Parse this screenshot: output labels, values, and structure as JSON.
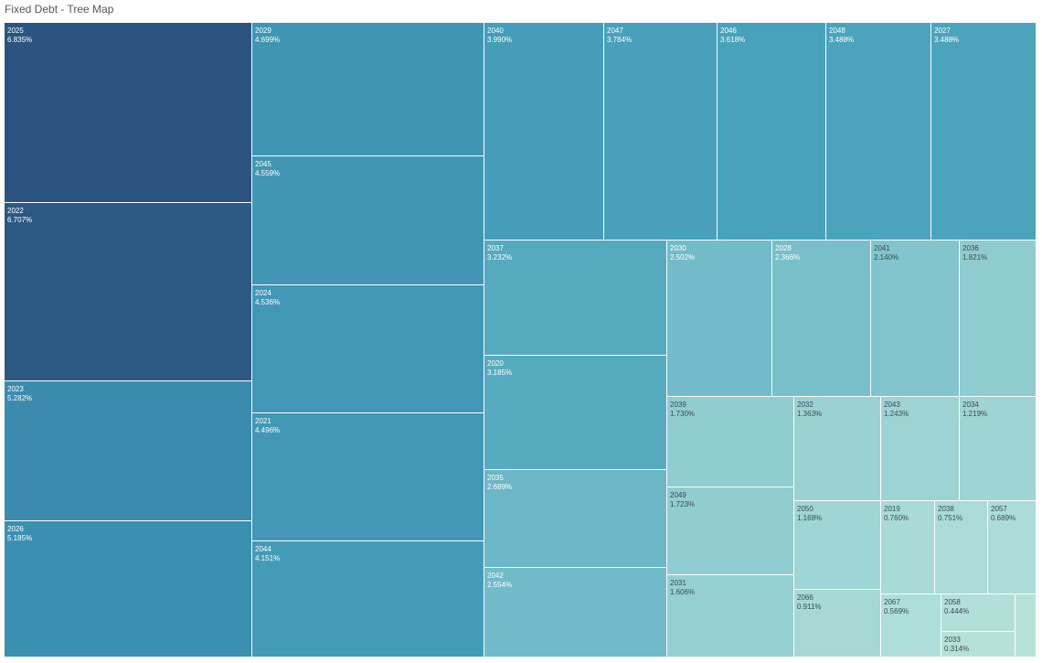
{
  "title": "Fixed Debt - Tree Map",
  "chart_data": {
    "type": "treemap",
    "title": "Fixed Debt - Tree Map",
    "items": [
      {
        "label": "2025",
        "value": "6.835%"
      },
      {
        "label": "2022",
        "value": "6.707%"
      },
      {
        "label": "2023",
        "value": "5.282%"
      },
      {
        "label": "2026",
        "value": "5.185%"
      },
      {
        "label": "2029",
        "value": "4.699%"
      },
      {
        "label": "2045",
        "value": "4.559%"
      },
      {
        "label": "2024",
        "value": "4.536%"
      },
      {
        "label": "2021",
        "value": "4.496%"
      },
      {
        "label": "2044",
        "value": "4.151%"
      },
      {
        "label": "2040",
        "value": "3.990%"
      },
      {
        "label": "2047",
        "value": "3.784%"
      },
      {
        "label": "2046",
        "value": "3.618%"
      },
      {
        "label": "2048",
        "value": "3.488%"
      },
      {
        "label": "2027",
        "value": "3.488%"
      },
      {
        "label": "2037",
        "value": "3.232%"
      },
      {
        "label": "2020",
        "value": "3.185%"
      },
      {
        "label": "2035",
        "value": "2.689%"
      },
      {
        "label": "2042",
        "value": "2.554%"
      },
      {
        "label": "2030",
        "value": "2.502%"
      },
      {
        "label": "2028",
        "value": "2.366%"
      },
      {
        "label": "2041",
        "value": "2.140%"
      },
      {
        "label": "2036",
        "value": "1.821%"
      },
      {
        "label": "2039",
        "value": "1.730%"
      },
      {
        "label": "2049",
        "value": "1.723%"
      },
      {
        "label": "2031",
        "value": "1.606%"
      },
      {
        "label": "2032",
        "value": "1.363%"
      },
      {
        "label": "2043",
        "value": "1.243%"
      },
      {
        "label": "2034",
        "value": "1.219%"
      },
      {
        "label": "2050",
        "value": "1.168%"
      },
      {
        "label": "2066",
        "value": "0.911%"
      },
      {
        "label": "2019",
        "value": "0.760%"
      },
      {
        "label": "2038",
        "value": "0.751%"
      },
      {
        "label": "2057",
        "value": "0.689%"
      },
      {
        "label": "2067",
        "value": "0.569%"
      },
      {
        "label": "2058",
        "value": "0.444%"
      },
      {
        "label": "2033",
        "value": "0.314%"
      },
      {
        "label": "",
        "value": ""
      }
    ],
    "color_scale": [
      "#2b5580",
      "#3b8fb0",
      "#4aa3bc",
      "#8dcbcf",
      "#b8e3da"
    ]
  }
}
